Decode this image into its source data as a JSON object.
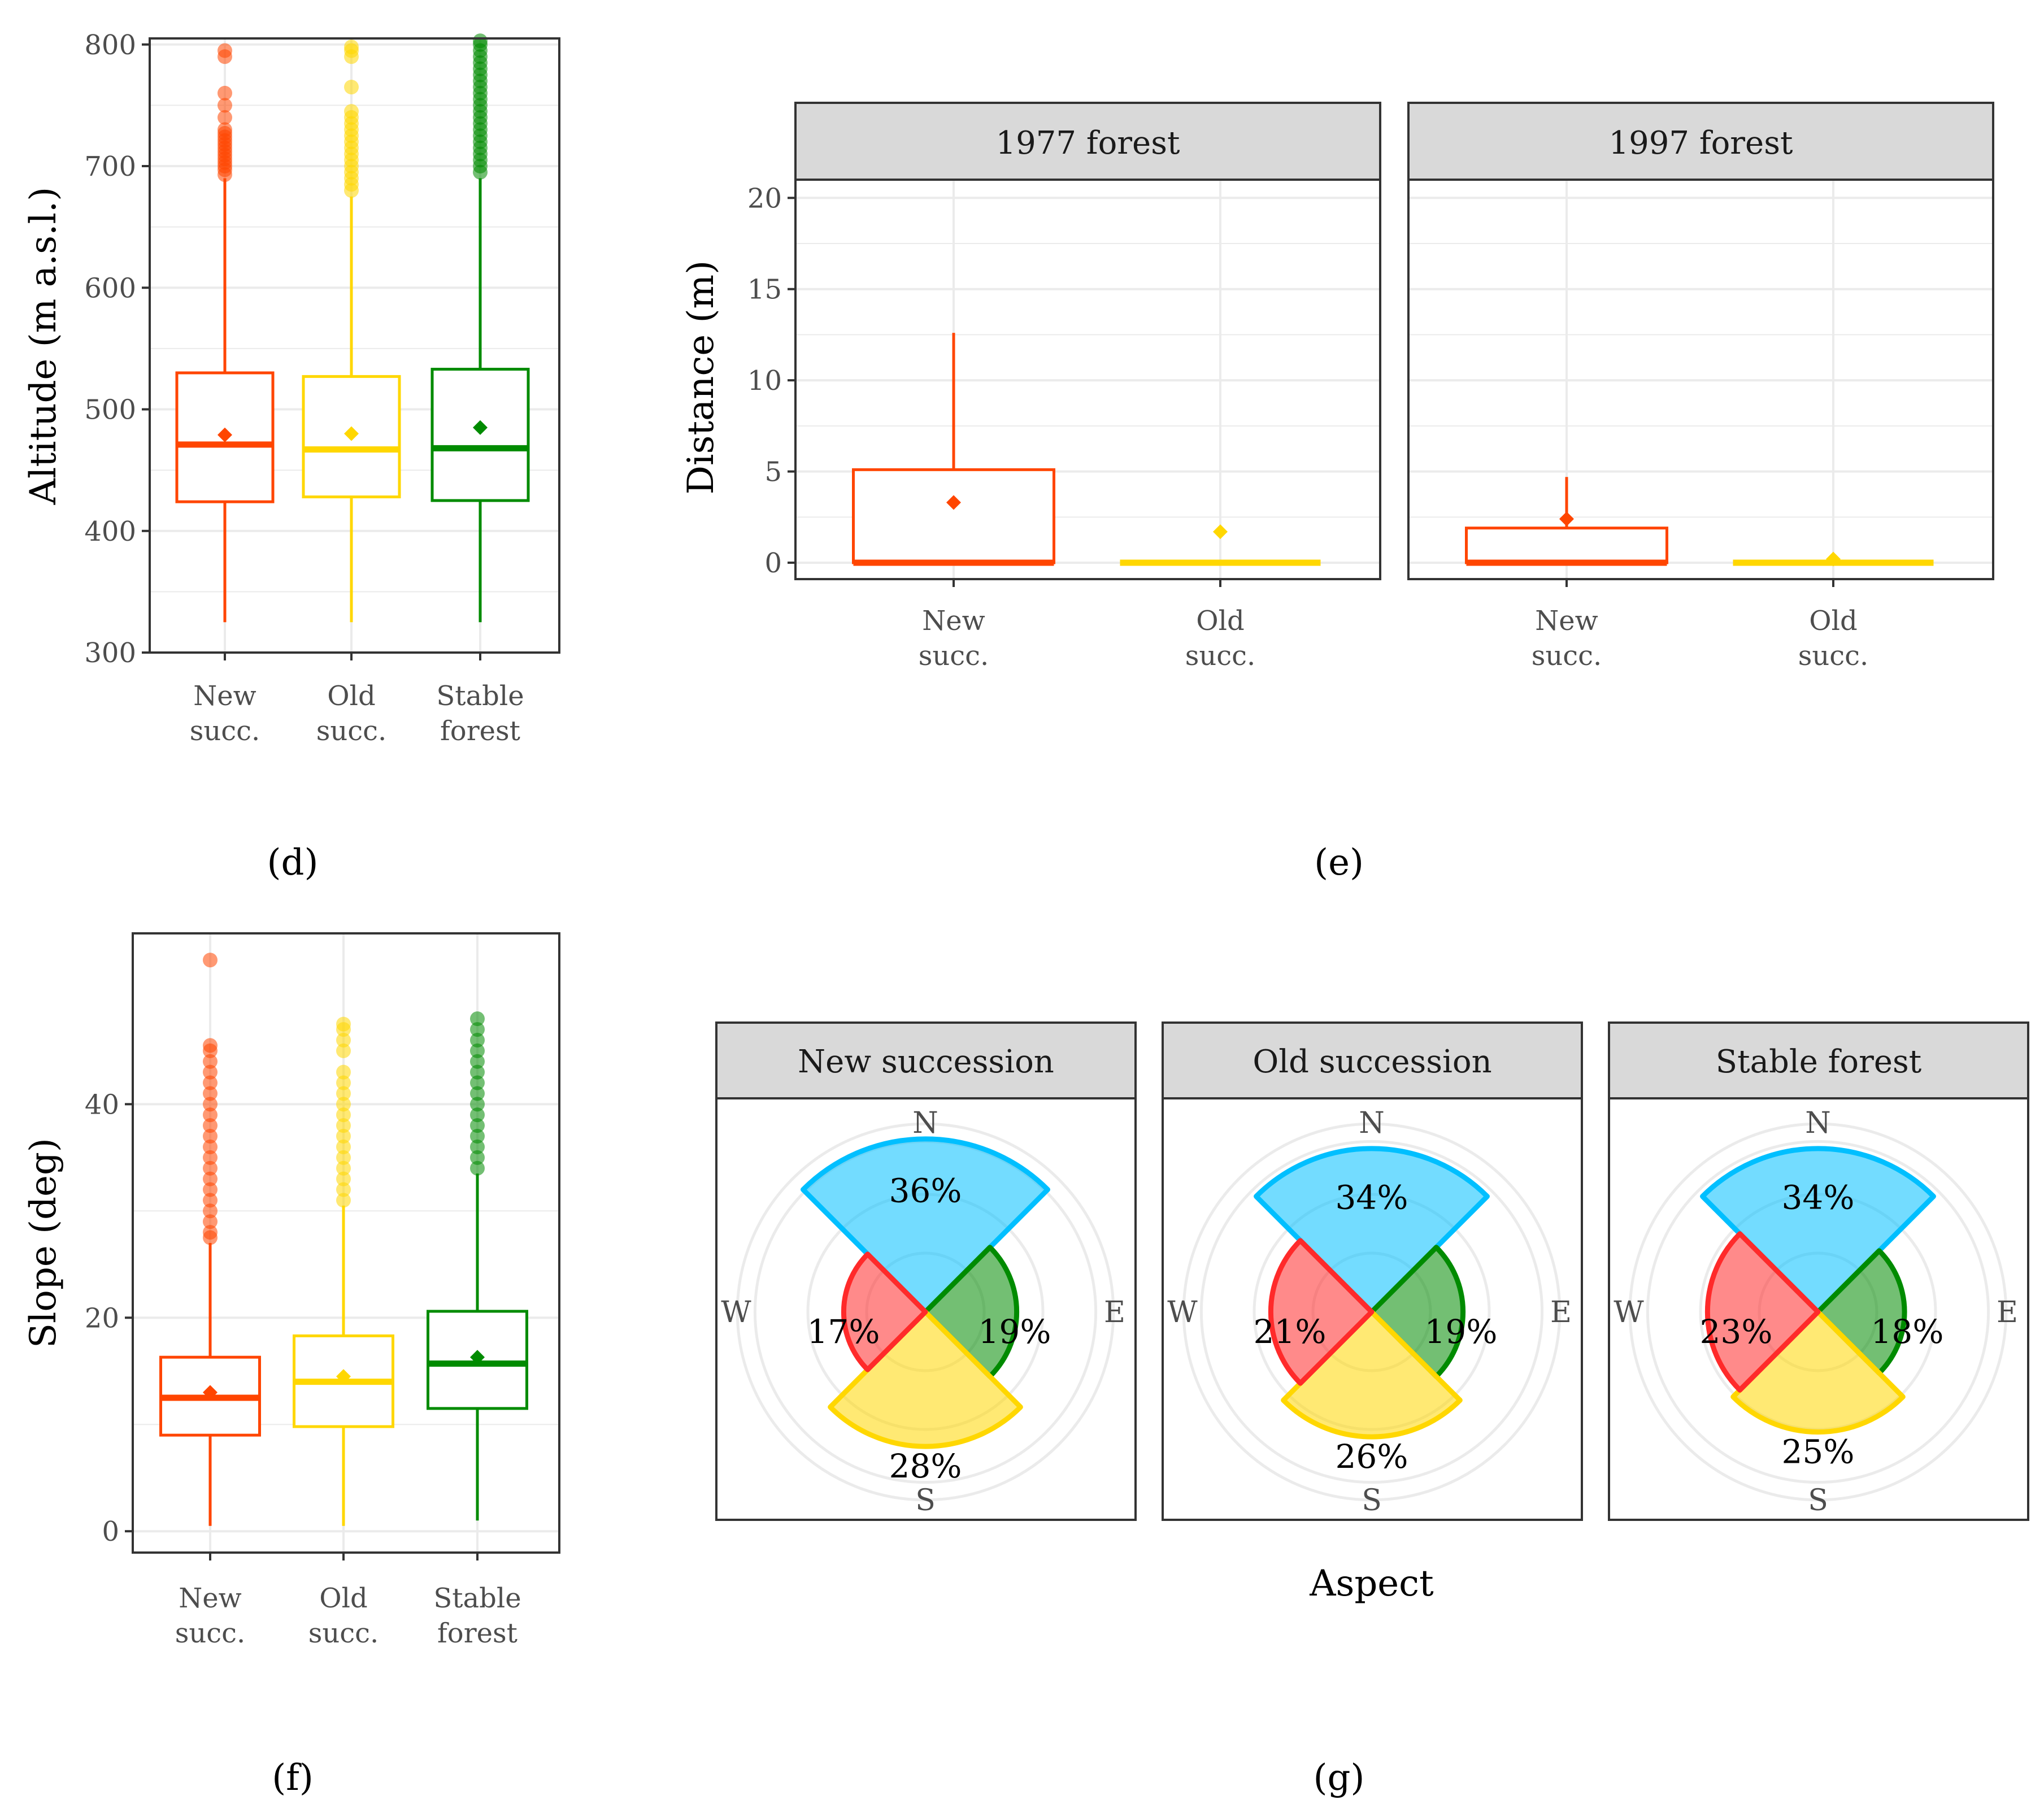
{
  "colors": {
    "new": "#ff4500",
    "old": "#ffd700",
    "stable": "#008b00",
    "rose_n": "#00bfff",
    "rose_e": "#008b00",
    "rose_s": "#ffd700",
    "rose_w": "#ff2a2a",
    "grid": "#ebebeb",
    "strip_bg": "#d9d9d9"
  },
  "chart_data": [
    {
      "id": "d",
      "type": "box",
      "caption": "(d)",
      "ylabel": "Altitude (m a.s.l.)",
      "ylim": [
        300,
        805
      ],
      "yticks": [
        300,
        400,
        500,
        600,
        700,
        800
      ],
      "grid": true,
      "categories": [
        [
          "New",
          "succ."
        ],
        [
          "Old",
          "succ."
        ],
        [
          "Stable",
          "forest"
        ]
      ],
      "groups": [
        {
          "color": "new",
          "whisker_low": 325,
          "q1": 424,
          "median": 471,
          "q3": 530,
          "whisker_high": 690,
          "mean": 479,
          "outliers": [
            693,
            697,
            700,
            703,
            706,
            709,
            712,
            715,
            718,
            721,
            724,
            727,
            730,
            740,
            750,
            760,
            790,
            795
          ]
        },
        {
          "color": "old",
          "whisker_low": 325,
          "q1": 428,
          "median": 467,
          "q3": 527,
          "whisker_high": 675,
          "mean": 480,
          "outliers": [
            680,
            685,
            690,
            695,
            700,
            705,
            710,
            715,
            720,
            725,
            730,
            735,
            740,
            745,
            765,
            790,
            795,
            798
          ]
        },
        {
          "color": "stable",
          "whisker_low": 325,
          "q1": 425,
          "median": 468,
          "q3": 533,
          "whisker_high": 690,
          "mean": 485,
          "outliers": [
            695,
            700,
            705,
            710,
            715,
            720,
            725,
            730,
            735,
            740,
            745,
            750,
            755,
            760,
            765,
            770,
            775,
            780,
            785,
            790,
            795,
            800,
            803
          ]
        }
      ]
    },
    {
      "id": "e",
      "type": "box",
      "caption": "(e)",
      "ylabel": "Distance (m)",
      "ylim": [
        -0.9,
        21.0
      ],
      "yticks": [
        0,
        5,
        10,
        15,
        20
      ],
      "grid": true,
      "facets": [
        {
          "title": "1977 forest",
          "categories": [
            [
              "New",
              "succ."
            ],
            [
              "Old",
              "succ."
            ]
          ],
          "groups": [
            {
              "color": "new",
              "whisker_low": 0,
              "q1": 0,
              "median": 0,
              "q3": 5.1,
              "whisker_high": 12.6,
              "mean": 3.3
            },
            {
              "color": "old",
              "whisker_low": 0,
              "q1": 0,
              "median": 0,
              "q3": 0,
              "whisker_high": 0,
              "mean": 1.7
            }
          ]
        },
        {
          "title": "1997 forest",
          "categories": [
            [
              "New",
              "succ."
            ],
            [
              "Old",
              "succ."
            ]
          ],
          "groups": [
            {
              "color": "new",
              "whisker_low": 0,
              "q1": 0,
              "median": 0,
              "q3": 1.9,
              "whisker_high": 4.7,
              "mean": 2.4
            },
            {
              "color": "old",
              "whisker_low": 0,
              "q1": 0,
              "median": 0,
              "q3": 0,
              "whisker_high": 0,
              "mean": 0.2
            }
          ]
        }
      ]
    },
    {
      "id": "f",
      "type": "box",
      "caption": "(f)",
      "ylabel": "Slope (deg)",
      "ylim": [
        -2,
        56
      ],
      "yticks": [
        0,
        20,
        40
      ],
      "grid": true,
      "categories": [
        [
          "New",
          "succ."
        ],
        [
          "Old",
          "succ."
        ],
        [
          "Stable",
          "forest"
        ]
      ],
      "groups": [
        {
          "color": "new",
          "whisker_low": 0.5,
          "q1": 9.0,
          "median": 12.5,
          "q3": 16.3,
          "whisker_high": 27.0,
          "mean": 13.0,
          "outliers": [
            27.5,
            28,
            29,
            30,
            31,
            32,
            33,
            34,
            35,
            36,
            37,
            38,
            39,
            40,
            41,
            42,
            43,
            44,
            45,
            45.5,
            53.5
          ]
        },
        {
          "color": "old",
          "whisker_low": 0.5,
          "q1": 9.8,
          "median": 14.0,
          "q3": 18.3,
          "whisker_high": 30.5,
          "mean": 14.5,
          "outliers": [
            31,
            32,
            33,
            34,
            35,
            36,
            37,
            38,
            39,
            40,
            41,
            42,
            43,
            45,
            46,
            47,
            47.5
          ]
        },
        {
          "color": "stable",
          "whisker_low": 1.0,
          "q1": 11.5,
          "median": 15.7,
          "q3": 20.6,
          "whisker_high": 33.5,
          "mean": 16.3,
          "outliers": [
            34,
            35,
            36,
            37,
            38,
            39,
            40,
            41,
            42,
            43,
            44,
            45,
            46,
            47,
            48
          ]
        }
      ]
    },
    {
      "id": "g",
      "type": "rose",
      "caption": "(g)",
      "xlabel": "Aspect",
      "compass": [
        "N",
        "E",
        "S",
        "W"
      ],
      "rmax": 36,
      "facets": [
        {
          "title": "New succession",
          "values": {
            "N": 36,
            "E": 19,
            "S": 28,
            "W": 17
          },
          "labels": {
            "N": "36%",
            "E": "19%",
            "S": "28%",
            "W": "17%"
          }
        },
        {
          "title": "Old succession",
          "values": {
            "N": 34,
            "E": 19,
            "S": 26,
            "W": 21
          },
          "labels": {
            "N": "34%",
            "E": "19%",
            "S": "26%",
            "W": "21%"
          }
        },
        {
          "title": "Stable forest",
          "values": {
            "N": 34,
            "E": 18,
            "S": 25,
            "W": 23
          },
          "labels": {
            "N": "34%",
            "E": "18%",
            "S": "25%",
            "W": "23%"
          }
        }
      ]
    }
  ]
}
